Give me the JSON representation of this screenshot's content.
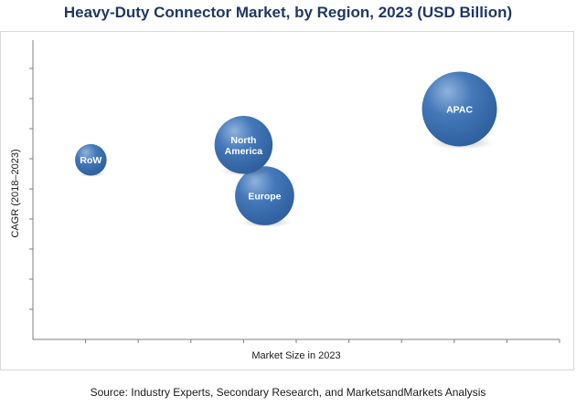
{
  "chart_data": {
    "type": "bubble",
    "title": "Heavy-Duty Connector Market, by Region, 2023 (USD Billion)",
    "xlabel": "Market Size in 2023",
    "ylabel": "CAGR (2018–2023)",
    "xlim": [
      0,
      100
    ],
    "ylim": [
      0,
      100
    ],
    "grid": false,
    "legend": "none",
    "axis_tick_labels_shown": false,
    "bubble_color": "#2e5f9e",
    "bubble_color_highlight": "#8fb2dc",
    "points": [
      {
        "label": "RoW",
        "label_lines": [
          "RoW"
        ],
        "x": 11,
        "y": 60,
        "size": 8
      },
      {
        "label": "North America",
        "label_lines": [
          "North",
          "America"
        ],
        "x": 40,
        "y": 65,
        "size": 27
      },
      {
        "label": "Europe",
        "label_lines": [
          "Europe"
        ],
        "x": 44,
        "y": 48,
        "size": 28
      },
      {
        "label": "APAC",
        "label_lines": [
          "APAC"
        ],
        "x": 81,
        "y": 77,
        "size": 45
      }
    ]
  },
  "source": "Source: Industry Experts, Secondary Research, and MarketsandMarkets Analysis"
}
